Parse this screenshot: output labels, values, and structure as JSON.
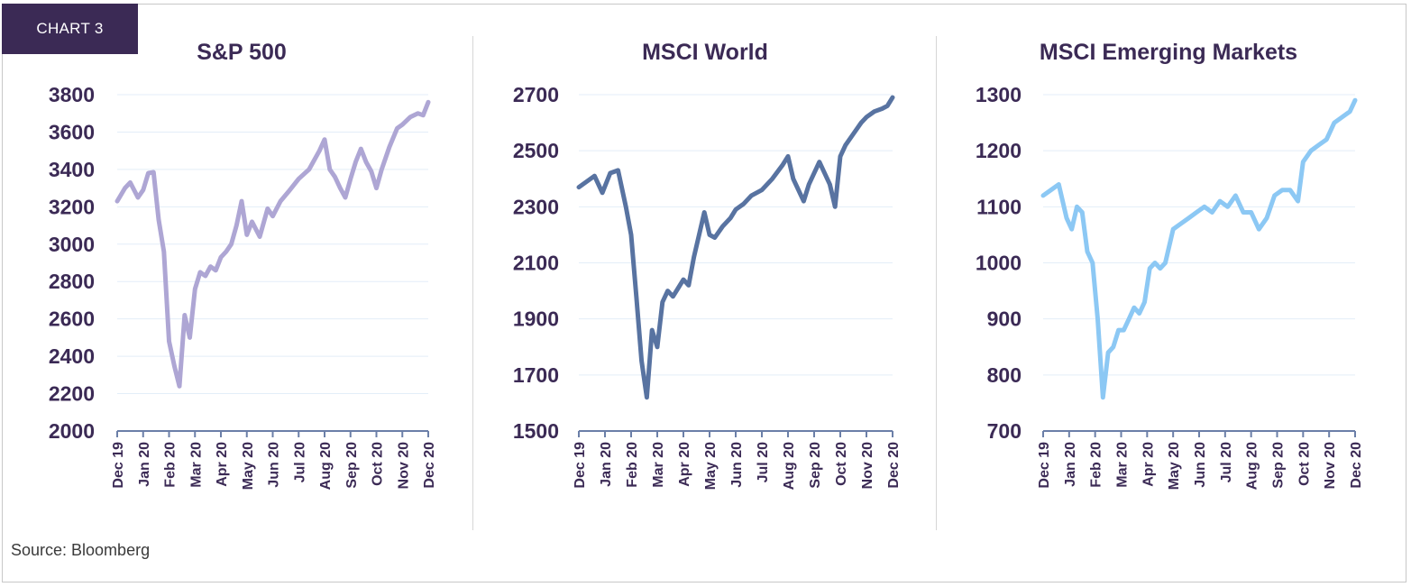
{
  "badge": "CHART 3",
  "source": "Source: Bloomberg",
  "chart_data": [
    {
      "type": "line",
      "title": "S&P 500",
      "color": "#aea6d4",
      "ylim": [
        2000,
        3800
      ],
      "yticks": [
        2000,
        2200,
        2400,
        2600,
        2800,
        3000,
        3200,
        3400,
        3600,
        3800
      ],
      "xticks": [
        "Dec 19",
        "Jan 20",
        "Feb 20",
        "Mar 20",
        "Apr 20",
        "May 20",
        "Jun 20",
        "Jul 20",
        "Aug 20",
        "Sep 20",
        "Oct 20",
        "Nov 20",
        "Dec 20"
      ],
      "grid": true,
      "x": [
        0,
        0.3,
        0.5,
        0.8,
        1.0,
        1.2,
        1.4,
        1.6,
        1.8,
        2.0,
        2.2,
        2.4,
        2.6,
        2.8,
        3.0,
        3.2,
        3.4,
        3.6,
        3.8,
        4.0,
        4.2,
        4.4,
        4.6,
        4.8,
        5.0,
        5.2,
        5.5,
        5.8,
        6.0,
        6.3,
        6.6,
        7.0,
        7.4,
        7.8,
        8.0,
        8.2,
        8.4,
        8.6,
        8.8,
        9.0,
        9.2,
        9.4,
        9.6,
        9.8,
        10.0,
        10.2,
        10.5,
        10.8,
        11.0,
        11.3,
        11.6,
        11.8,
        12.0
      ],
      "y": [
        3230,
        3300,
        3330,
        3250,
        3290,
        3380,
        3385,
        3130,
        2960,
        2480,
        2350,
        2240,
        2620,
        2500,
        2760,
        2850,
        2830,
        2880,
        2860,
        2930,
        2960,
        3000,
        3100,
        3230,
        3050,
        3120,
        3040,
        3190,
        3150,
        3230,
        3280,
        3350,
        3400,
        3500,
        3560,
        3400,
        3360,
        3300,
        3250,
        3350,
        3440,
        3510,
        3440,
        3390,
        3300,
        3400,
        3520,
        3620,
        3640,
        3680,
        3700,
        3690,
        3760
      ]
    },
    {
      "type": "line",
      "title": "MSCI World",
      "color": "#5873a1",
      "ylim": [
        1500,
        2700
      ],
      "yticks": [
        1500,
        1700,
        1900,
        2100,
        2300,
        2500,
        2700
      ],
      "xticks": [
        "Dec 19",
        "Jan 20",
        "Feb 20",
        "Mar 20",
        "Apr 20",
        "May 20",
        "Jun 20",
        "Jul 20",
        "Aug 20",
        "Sep 20",
        "Oct 20",
        "Nov 20",
        "Dec 20"
      ],
      "grid": true,
      "x": [
        0,
        0.3,
        0.6,
        0.9,
        1.2,
        1.5,
        1.8,
        2.0,
        2.2,
        2.4,
        2.6,
        2.8,
        3.0,
        3.2,
        3.4,
        3.6,
        3.8,
        4.0,
        4.2,
        4.4,
        4.6,
        4.8,
        5.0,
        5.2,
        5.5,
        5.8,
        6.0,
        6.3,
        6.6,
        7.0,
        7.4,
        7.8,
        8.0,
        8.2,
        8.4,
        8.6,
        8.8,
        9.0,
        9.2,
        9.4,
        9.6,
        9.8,
        10.0,
        10.2,
        10.5,
        10.8,
        11.0,
        11.3,
        11.6,
        11.8,
        12.0
      ],
      "y": [
        2370,
        2390,
        2410,
        2350,
        2420,
        2430,
        2300,
        2200,
        1980,
        1750,
        1620,
        1860,
        1800,
        1960,
        2000,
        1980,
        2010,
        2040,
        2020,
        2120,
        2200,
        2280,
        2200,
        2190,
        2230,
        2260,
        2290,
        2310,
        2340,
        2360,
        2400,
        2450,
        2480,
        2400,
        2360,
        2320,
        2380,
        2420,
        2460,
        2420,
        2380,
        2300,
        2480,
        2520,
        2560,
        2600,
        2620,
        2640,
        2650,
        2660,
        2690
      ]
    },
    {
      "type": "line",
      "title": "MSCI Emerging Markets",
      "color": "#8cc8f4",
      "ylim": [
        700,
        1300
      ],
      "yticks": [
        700,
        800,
        900,
        1000,
        1100,
        1200,
        1300
      ],
      "xticks": [
        "Dec 19",
        "Jan 20",
        "Feb 20",
        "Mar 20",
        "Apr 20",
        "May 20",
        "Jun 20",
        "Jul 20",
        "Aug 20",
        "Sep 20",
        "Oct 20",
        "Nov 20",
        "Dec 20"
      ],
      "grid": true,
      "x": [
        0,
        0.3,
        0.6,
        0.9,
        1.1,
        1.3,
        1.5,
        1.7,
        1.9,
        2.1,
        2.3,
        2.5,
        2.7,
        2.9,
        3.1,
        3.3,
        3.5,
        3.7,
        3.9,
        4.1,
        4.3,
        4.5,
        4.7,
        5.0,
        5.3,
        5.6,
        5.9,
        6.2,
        6.5,
        6.8,
        7.1,
        7.4,
        7.7,
        8.0,
        8.3,
        8.6,
        8.9,
        9.2,
        9.5,
        9.8,
        10.0,
        10.3,
        10.6,
        10.9,
        11.2,
        11.5,
        11.8,
        12.0
      ],
      "y": [
        1120,
        1130,
        1140,
        1080,
        1060,
        1100,
        1090,
        1020,
        1000,
        900,
        760,
        840,
        850,
        880,
        880,
        900,
        920,
        910,
        930,
        990,
        1000,
        990,
        1000,
        1060,
        1070,
        1080,
        1090,
        1100,
        1090,
        1110,
        1100,
        1120,
        1090,
        1090,
        1060,
        1080,
        1120,
        1130,
        1130,
        1110,
        1180,
        1200,
        1210,
        1220,
        1250,
        1260,
        1270,
        1290
      ]
    }
  ]
}
